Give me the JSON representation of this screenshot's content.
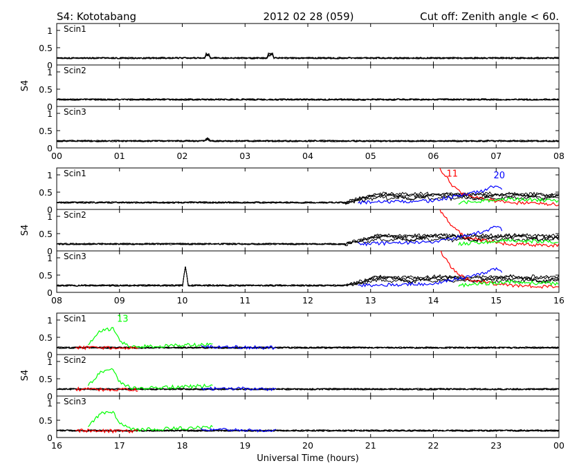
{
  "header": {
    "left": "S4: Kototabang",
    "center": "2012 02 28 (059)",
    "right": "Cut off: Zenith angle < 60."
  },
  "colors": {
    "background": "#ffffff",
    "axis": "#000000",
    "default_trace": "#000000",
    "red": "#ff0000",
    "green": "#00ff00",
    "blue": "#0000ff"
  },
  "chart_data": [
    {
      "type": "line",
      "time_range_hours": [
        0,
        8
      ],
      "x_tick_labels": [
        "00",
        "01",
        "02",
        "03",
        "04",
        "05",
        "06",
        "07",
        "08"
      ],
      "ylabel": "S4",
      "ylim": [
        0,
        1.2
      ],
      "y_tick_labels": [
        "0",
        "0.5",
        "1"
      ],
      "panels": [
        "Scin1",
        "Scin2",
        "Scin3"
      ],
      "baseline_s4": 0.2,
      "features": [
        {
          "panel": "Scin1",
          "hours": [
            2.4,
            3.4
          ],
          "peak_s4": 0.35
        },
        {
          "panel": "Scin3",
          "hours": [
            2.4
          ],
          "peak_s4": 0.3
        }
      ],
      "satellite_labels": []
    },
    {
      "type": "line",
      "time_range_hours": [
        8,
        16
      ],
      "x_tick_labels": [
        "08",
        "09",
        "10",
        "11",
        "12",
        "13",
        "14",
        "15",
        "16"
      ],
      "ylabel": "S4",
      "ylim": [
        0,
        1.2
      ],
      "y_tick_labels": [
        "0",
        "0.5",
        "1"
      ],
      "panels": [
        "Scin1",
        "Scin2",
        "Scin3"
      ],
      "baseline_s4": 0.2,
      "enhancement": {
        "start_hour": 12.6,
        "end_hour": 16,
        "black_peak_s4": 0.5
      },
      "spike": {
        "panel": "Scin3",
        "hour": 10.05,
        "peak_s4": 0.75
      },
      "colored_series": [
        {
          "label": "11",
          "color": "red",
          "start_hour": 14.1,
          "end_hour": 16,
          "points": [
            [
              14.1,
              1.2
            ],
            [
              14.3,
              0.7
            ],
            [
              14.5,
              0.4
            ],
            [
              14.8,
              0.3
            ],
            [
              15.2,
              0.2
            ],
            [
              16.0,
              0.15
            ]
          ]
        },
        {
          "label": "20",
          "color": "blue",
          "start_hour": 12.8,
          "end_hour": 15.1,
          "points": [
            [
              12.8,
              0.2
            ],
            [
              14.0,
              0.25
            ],
            [
              14.4,
              0.4
            ],
            [
              14.8,
              0.55
            ],
            [
              15.0,
              0.7
            ],
            [
              15.1,
              0.6
            ]
          ]
        },
        {
          "label": "",
          "color": "green",
          "start_hour": 14.4,
          "end_hour": 16,
          "points": [
            [
              14.4,
              0.2
            ],
            [
              15.2,
              0.3
            ],
            [
              16.0,
              0.25
            ]
          ]
        }
      ],
      "satellite_labels": [
        {
          "text": "11",
          "color": "red",
          "hour": 14.3,
          "s4": 0.95
        },
        {
          "text": "20",
          "color": "blue",
          "hour": 15.05,
          "s4": 0.9
        }
      ]
    },
    {
      "type": "line",
      "time_range_hours": [
        16,
        24
      ],
      "x_tick_labels": [
        "16",
        "17",
        "18",
        "19",
        "20",
        "21",
        "22",
        "23",
        "00"
      ],
      "xlabel": "Universal Time (hours)",
      "ylabel": "S4",
      "ylim": [
        0,
        1.2
      ],
      "y_tick_labels": [
        "0",
        "0.5",
        "1"
      ],
      "panels": [
        "Scin1",
        "Scin2",
        "Scin3"
      ],
      "baseline_s4": 0.2,
      "colored_series": [
        {
          "label": "13",
          "color": "green",
          "start_hour": 16.5,
          "end_hour": 18.5,
          "points": [
            [
              16.5,
              0.3
            ],
            [
              16.7,
              0.7
            ],
            [
              16.9,
              0.75
            ],
            [
              17.0,
              0.4
            ],
            [
              17.2,
              0.22
            ],
            [
              18.5,
              0.3
            ]
          ]
        },
        {
          "label": "",
          "color": "blue",
          "start_hour": 18.3,
          "end_hour": 19.5,
          "points": [
            [
              18.3,
              0.22
            ],
            [
              19.5,
              0.2
            ]
          ]
        },
        {
          "label": "",
          "color": "red",
          "start_hour": 16.3,
          "end_hour": 17.3,
          "points": [
            [
              16.3,
              0.2
            ],
            [
              17.3,
              0.18
            ]
          ]
        }
      ],
      "satellite_labels": [
        {
          "text": "13",
          "color": "green",
          "hour": 17.05,
          "s4": 0.95
        }
      ]
    }
  ]
}
